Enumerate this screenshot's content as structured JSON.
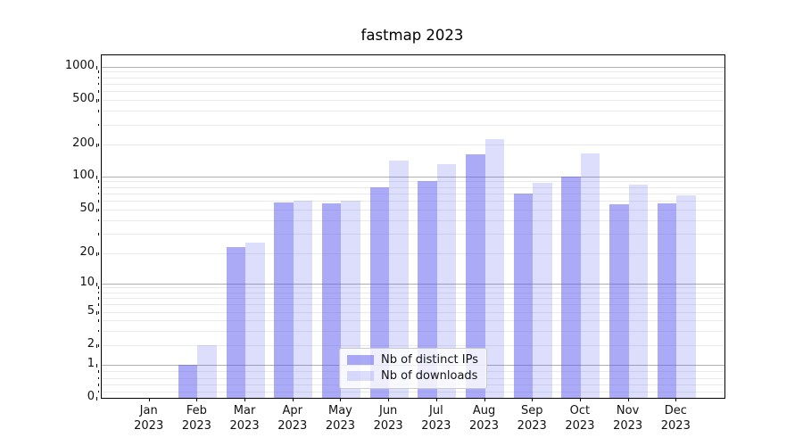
{
  "title": "fastmap 2023",
  "chart_data": {
    "type": "bar",
    "title": "fastmap 2023",
    "yscale": "symlog",
    "ylim": [
      0,
      1260
    ],
    "grid": true,
    "legend_position": "lower center",
    "y_ticks": [
      0,
      1,
      2,
      5,
      10,
      20,
      50,
      100,
      200,
      500,
      1000
    ],
    "categories": [
      "Jan 2023",
      "Feb 2023",
      "Mar 2023",
      "Apr 2023",
      "May 2023",
      "Jun 2023",
      "Jul 2023",
      "Aug 2023",
      "Sep 2023",
      "Oct 2023",
      "Nov 2023",
      "Dec 2023"
    ],
    "series": [
      {
        "name": "Nb of distinct IPs",
        "color": "rgba(85,85,238,0.5)",
        "values": [
          0,
          1,
          23,
          58,
          57,
          80,
          90,
          160,
          70,
          100,
          56,
          57
        ]
      },
      {
        "name": "Nb of downloads",
        "color": "rgba(85,85,238,0.2)",
        "values": [
          0,
          2,
          25,
          60,
          60,
          140,
          130,
          225,
          88,
          165,
          84,
          67
        ]
      }
    ],
    "colors": {
      "accent": "#5555ee",
      "major_grid": "#b0b0b0",
      "minor_grid": "#eaeaea",
      "spine": "#000000",
      "text": "#111111"
    }
  }
}
